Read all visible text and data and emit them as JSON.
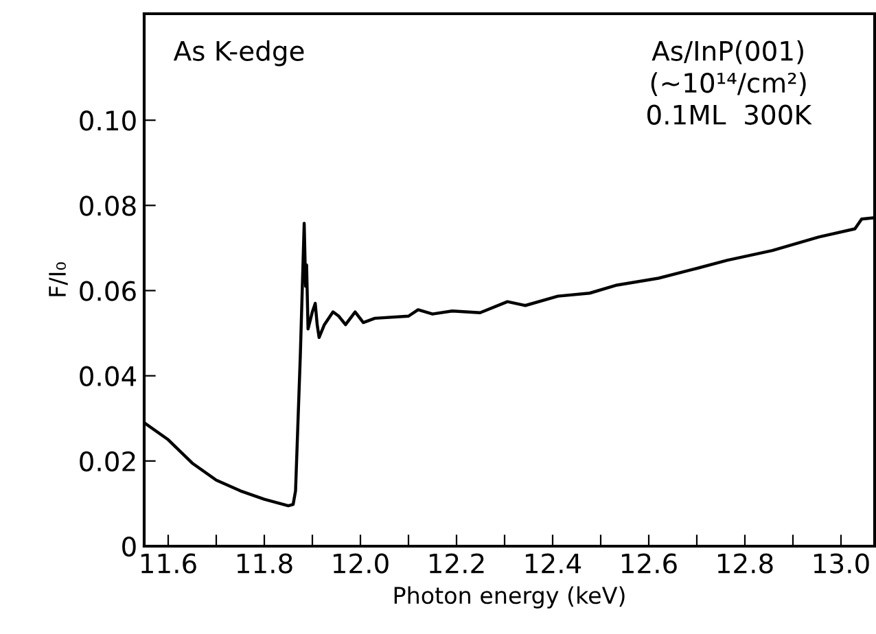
{
  "chart_data": {
    "type": "line",
    "xlabel": "Photon energy (keV)",
    "ylabel": "F/I₀",
    "annotations": [
      "As K-edge",
      "As/InP(001)\n(~10¹⁴/cm²)\n0.1ML  300K"
    ],
    "series": [
      {
        "color": "#000000",
        "x": [
          11.55,
          11.6,
          11.65,
          11.7,
          11.75,
          11.8,
          11.85,
          11.86,
          11.865,
          11.875,
          11.883,
          11.886,
          11.888,
          11.891,
          11.9,
          11.906,
          11.91,
          11.914,
          11.925,
          11.943,
          11.955,
          11.969,
          11.989,
          12.006,
          12.03,
          12.1,
          12.12,
          12.15,
          12.191,
          12.249,
          12.306,
          12.343,
          12.411,
          12.477,
          12.534,
          12.62,
          12.686,
          12.763,
          12.857,
          12.954,
          13.029,
          13.043,
          13.069
        ],
        "values": [
          0.029,
          0.025,
          0.0195,
          0.0155,
          0.013,
          0.011,
          0.0095,
          0.0098,
          0.013,
          0.045,
          0.0758,
          0.061,
          0.066,
          0.051,
          0.055,
          0.057,
          0.052,
          0.049,
          0.052,
          0.055,
          0.054,
          0.052,
          0.055,
          0.0525,
          0.0535,
          0.054,
          0.0555,
          0.0545,
          0.0552,
          0.0548,
          0.0574,
          0.0565,
          0.0587,
          0.0594,
          0.0613,
          0.0629,
          0.0648,
          0.0671,
          0.0694,
          0.0726,
          0.0745,
          0.0768,
          0.0771
        ]
      }
    ],
    "xlim": [
      11.55,
      13.07
    ],
    "ylim": [
      0,
      0.125
    ],
    "xticks": [
      11.6,
      {
        "value": 11.7,
        "label": null
      },
      11.8,
      {
        "value": 11.9,
        "label": null
      },
      {
        "value": 12.0,
        "label": "12.0"
      },
      {
        "value": 12.1,
        "label": null
      },
      12.2,
      {
        "value": 12.3,
        "label": null
      },
      12.4,
      {
        "value": 12.5,
        "label": null
      },
      12.6,
      {
        "value": 12.7,
        "label": null
      },
      12.8,
      {
        "value": 12.9,
        "label": null
      },
      {
        "value": 13.0,
        "label": "13.0"
      }
    ],
    "yticks": [
      0,
      0.02,
      0.04,
      0.06,
      0.08,
      {
        "value": 0.1,
        "label": "0.10"
      }
    ],
    "grid": false,
    "legend": false
  }
}
